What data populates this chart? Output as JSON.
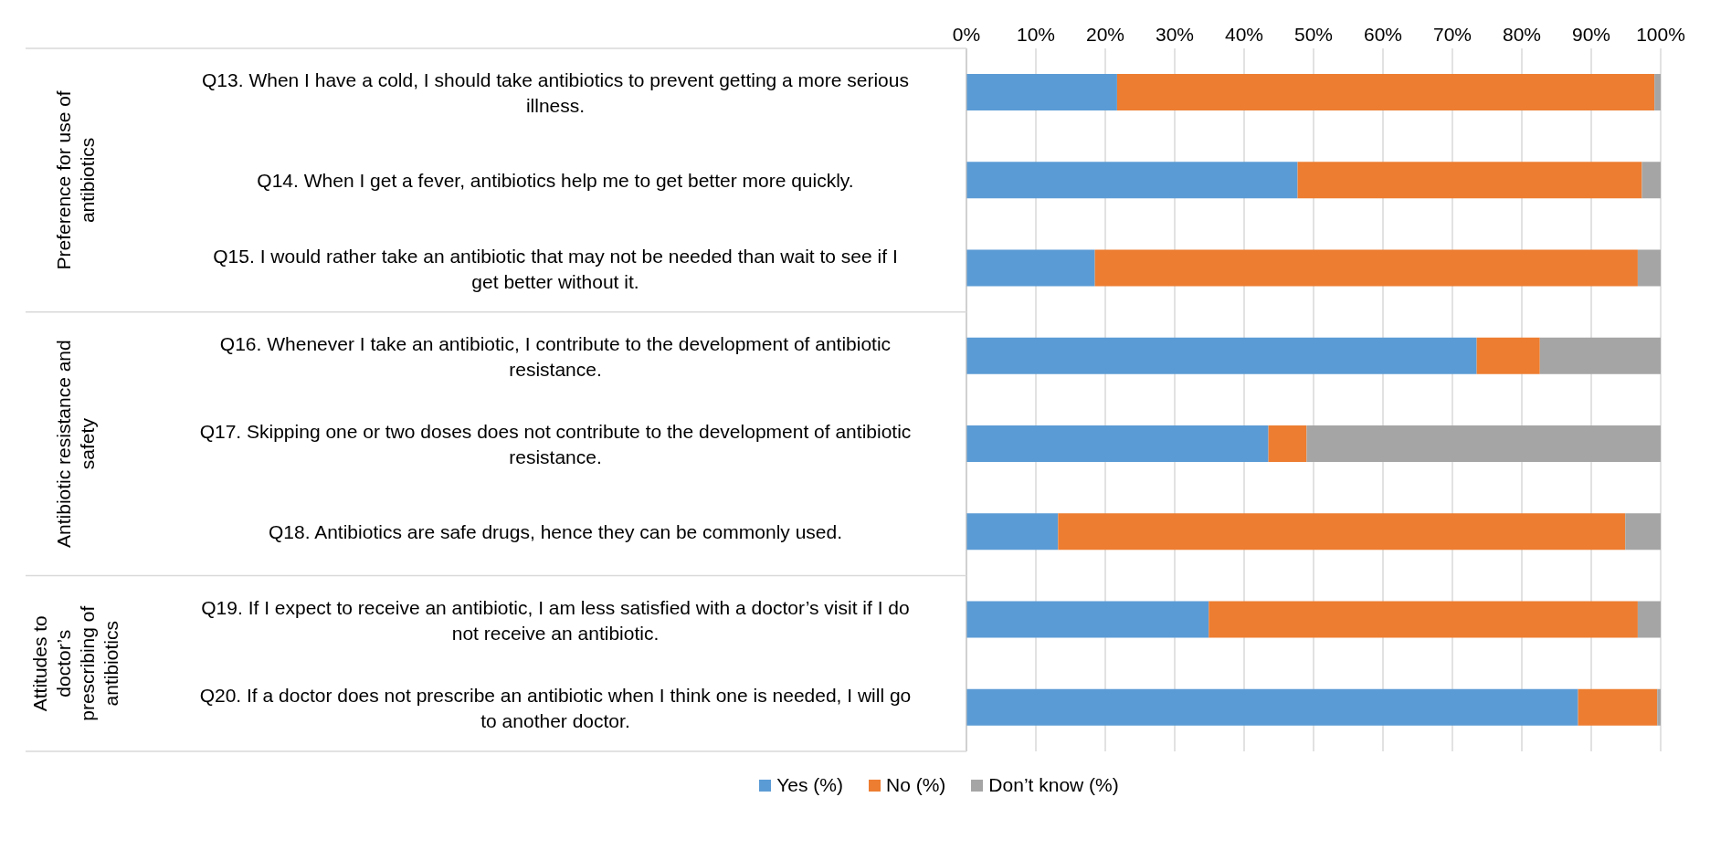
{
  "chart_data": {
    "type": "bar",
    "orientation": "horizontal",
    "stacked": true,
    "categories": [
      "Q13. When I have a cold, I should take antibiotics to prevent getting a more serious illness.",
      "Q14. When I get a fever, antibiotics help me to get better more quickly.",
      "Q15. I would rather take an antibiotic that may not be needed than wait to see if I get better without it.",
      "Q16. Whenever I take an antibiotic, I contribute to the development of antibiotic resistance.",
      "Q17. Skipping one or two doses does not contribute to the development of antibiotic resistance.",
      "Q18. Antibiotics are safe drugs, hence they can be commonly used.",
      "Q19. If I expect to receive an antibiotic, I am less satisfied with a doctor’s visit if I do not receive an antibiotic.",
      "Q20. If a doctor does not prescribe an antibiotic when I think one is needed, I will go to another doctor."
    ],
    "series": [
      {
        "name": "Yes (%)",
        "color": "#5b9bd5",
        "values": [
          21.7,
          47.7,
          18.5,
          73.5,
          43.5,
          13.2,
          34.9,
          88.1
        ]
      },
      {
        "name": "No (%)",
        "color": "#ed7d31",
        "values": [
          77.4,
          49.6,
          78.2,
          9.1,
          5.5,
          81.7,
          61.8,
          11.4
        ]
      },
      {
        "name": "Don’t know (%)",
        "color": "#a5a5a5",
        "values": [
          0.9,
          2.7,
          3.3,
          17.4,
          51.0,
          5.1,
          3.3,
          0.5
        ]
      }
    ],
    "xlim": [
      0,
      100
    ],
    "xticks": [
      {
        "value": 0,
        "label": "0%"
      },
      {
        "value": 10,
        "label": "10%"
      },
      {
        "value": 20,
        "label": "20%"
      },
      {
        "value": 30,
        "label": "30%"
      },
      {
        "value": 40,
        "label": "40%"
      },
      {
        "value": 50,
        "label": "50%"
      },
      {
        "value": 60,
        "label": "60%"
      },
      {
        "value": 70,
        "label": "70%"
      },
      {
        "value": 80,
        "label": "80%"
      },
      {
        "value": 90,
        "label": "90%"
      },
      {
        "value": 100,
        "label": "100%"
      }
    ],
    "grid": "x",
    "legend": "bottom",
    "annotations": [
      "Preference for use of antibiotics",
      "Antibiotic resistance and safety",
      "Attitudes to doctor’s prescribing of antibiotics"
    ]
  }
}
